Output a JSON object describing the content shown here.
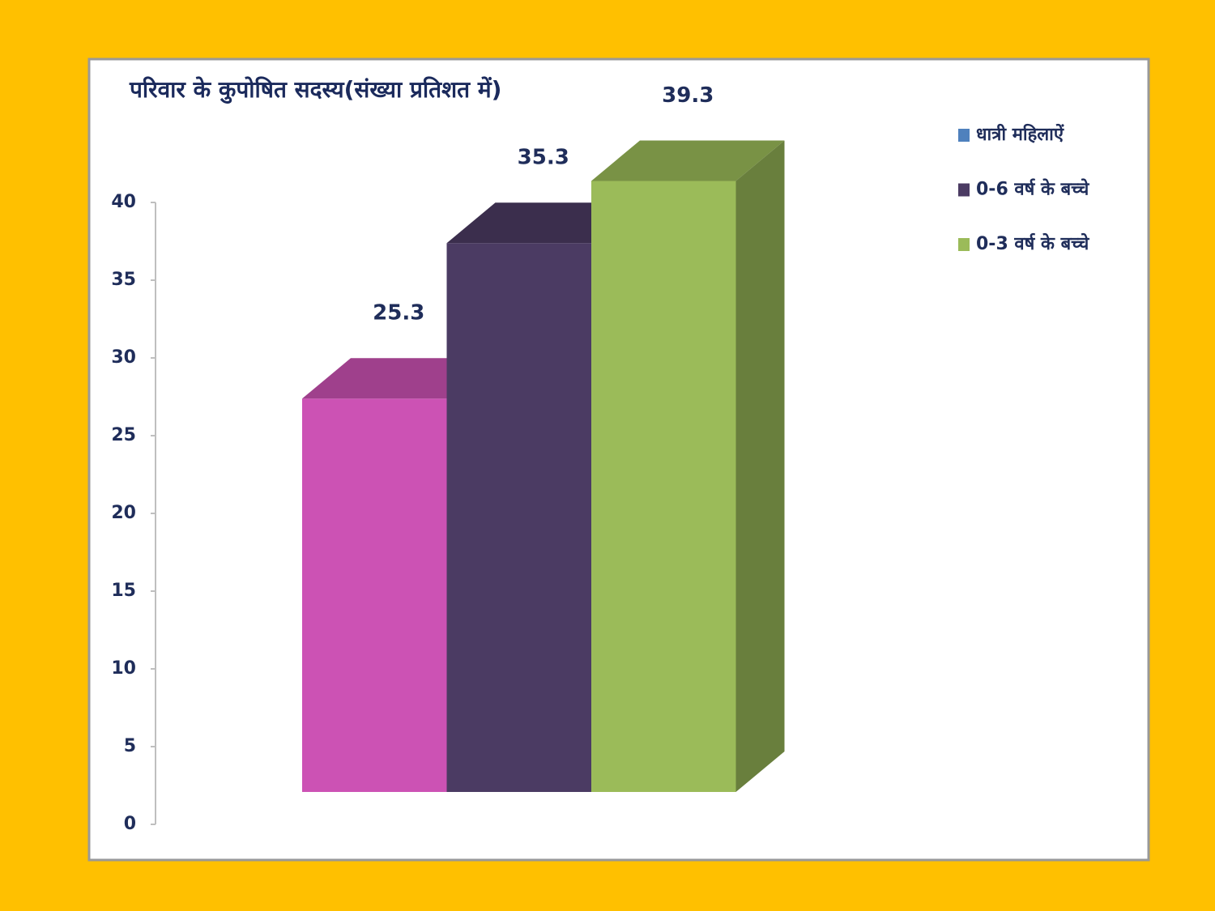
{
  "chart_data": {
    "type": "bar3d",
    "title": "परिवार के कुपोषित सदस्य(संख्या प्रतिशत में)",
    "series": [
      {
        "name": "धात्री महिलाऐं",
        "color": "#cc52b4",
        "legend_color": "#4f81bd",
        "values": [
          25.3
        ]
      },
      {
        "name": "0-6 वर्ष के बच्चे",
        "color": "#4b3b63",
        "legend_color": "#4b3b63",
        "values": [
          35.3
        ]
      },
      {
        "name": "0-3 वर्ष के बच्चे",
        "color": "#9bbb59",
        "legend_color": "#9bbb59",
        "values": [
          39.3
        ]
      }
    ],
    "ylim": [
      0,
      40
    ],
    "yticks": [
      0,
      5,
      10,
      15,
      20,
      25,
      30,
      35,
      40
    ],
    "legend": "right"
  }
}
